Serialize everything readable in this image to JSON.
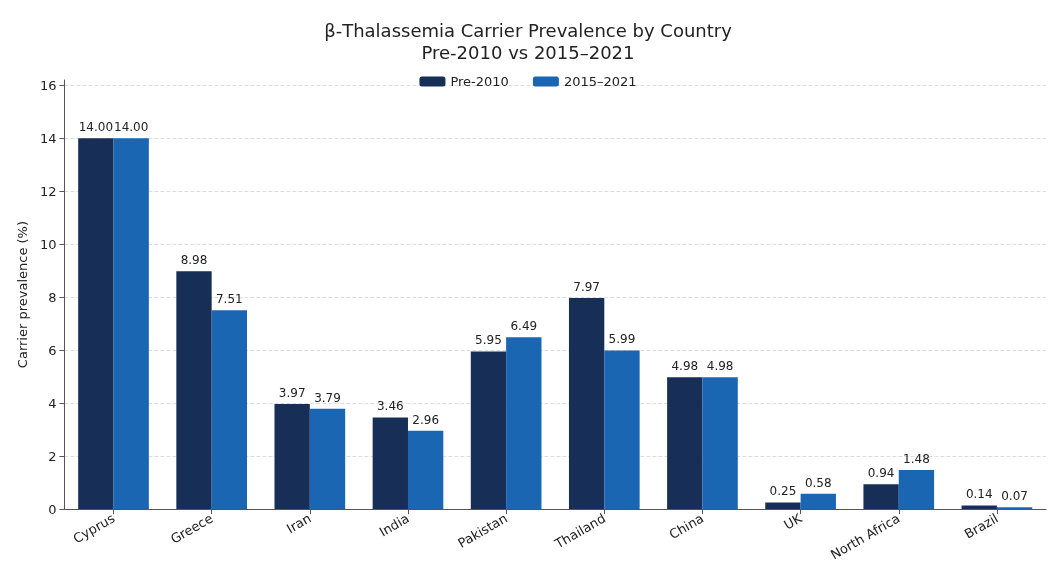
{
  "chart_data": {
    "type": "bar",
    "title": "β-Thalassemia Carrier Prevalence by Country",
    "subtitle": "Pre-2010 vs 2015–2021",
    "ylabel": "Carrier prevalence (%)",
    "categories": [
      "Cyprus",
      "Greece",
      "Iran",
      "India",
      "Pakistan",
      "Thailand",
      "China",
      "UK",
      "North Africa",
      "Brazil"
    ],
    "series": [
      {
        "name": "Pre-2010",
        "color": "#172e57",
        "values": [
          14.0,
          8.98,
          3.97,
          3.46,
          5.95,
          7.97,
          4.98,
          0.25,
          0.94,
          0.14
        ],
        "value_labels": [
          "14.00",
          "8.98",
          "3.97",
          "3.46",
          "5.95",
          "7.97",
          "4.98",
          "0.25",
          "0.94",
          "0.14"
        ]
      },
      {
        "name": "2015–2021",
        "color": "#1a66b3",
        "values": [
          14.0,
          7.51,
          3.79,
          2.96,
          6.49,
          5.99,
          4.98,
          0.58,
          1.48,
          0.07
        ],
        "value_labels": [
          "14.00",
          "7.51",
          "3.79",
          "2.96",
          "6.49",
          "5.99",
          "4.98",
          "0.58",
          "1.48",
          "0.07"
        ]
      }
    ],
    "ylim": [
      0,
      16.2
    ],
    "yticks": [
      0,
      2,
      4,
      6,
      8,
      10,
      12,
      14,
      16
    ],
    "grid": "y",
    "legend": "top"
  }
}
